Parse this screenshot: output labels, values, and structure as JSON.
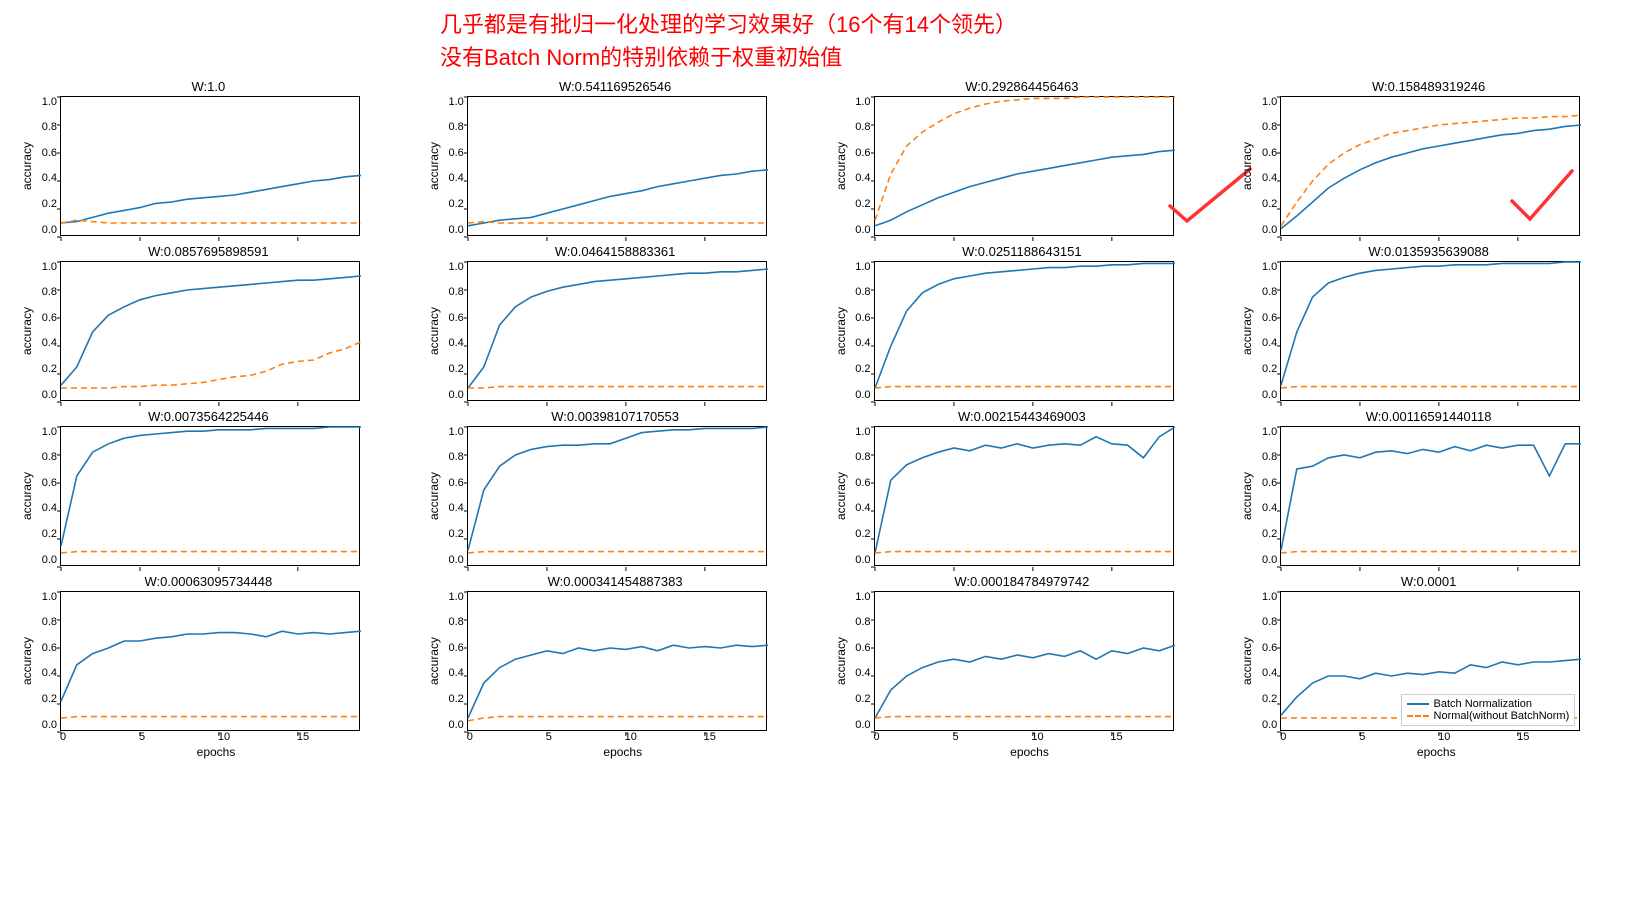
{
  "header": {
    "line1": "几乎都是有批归一化处理的学习效果好（16个有14个领先）",
    "line2": "没有Batch Norm的特别依赖于权重初始值",
    "color": "#ff0000"
  },
  "global": {
    "xlim": [
      0,
      19
    ],
    "ylim": [
      0,
      1.0
    ],
    "xticks": [
      0,
      5,
      10,
      15
    ],
    "yticks": [
      1.0,
      0.8,
      0.6,
      0.4,
      0.2,
      0.0
    ],
    "ylabel": "accuracy",
    "xlabel": "epochs",
    "bn_color": "#1f77b4",
    "normal_color": "#ff7f0e",
    "bn_style": "solid",
    "normal_style": "dashed",
    "line_width": 1.6,
    "checkmark_color": "#ff3333",
    "background_color": "#ffffff",
    "border_color": "#000000",
    "title_fontsize": 13,
    "tick_fontsize": 11,
    "label_fontsize": 12
  },
  "legend": {
    "bn_label": "Batch Normalization",
    "normal_label": "Normal(without BatchNorm)"
  },
  "subplots": [
    {
      "title": "W:1.0",
      "checkmark": false,
      "bn": [
        0.1,
        0.11,
        0.14,
        0.17,
        0.19,
        0.21,
        0.24,
        0.25,
        0.27,
        0.28,
        0.29,
        0.3,
        0.32,
        0.34,
        0.36,
        0.38,
        0.4,
        0.41,
        0.43,
        0.44
      ],
      "normal": [
        0.1,
        0.12,
        0.11,
        0.1,
        0.1,
        0.1,
        0.1,
        0.1,
        0.1,
        0.1,
        0.1,
        0.1,
        0.1,
        0.1,
        0.1,
        0.1,
        0.1,
        0.1,
        0.1,
        0.1
      ]
    },
    {
      "title": "W:0.541169526546",
      "checkmark": false,
      "bn": [
        0.08,
        0.1,
        0.12,
        0.13,
        0.14,
        0.17,
        0.2,
        0.23,
        0.26,
        0.29,
        0.31,
        0.33,
        0.36,
        0.38,
        0.4,
        0.42,
        0.44,
        0.45,
        0.47,
        0.48
      ],
      "normal": [
        0.1,
        0.11,
        0.1,
        0.1,
        0.1,
        0.1,
        0.1,
        0.1,
        0.1,
        0.1,
        0.1,
        0.1,
        0.1,
        0.1,
        0.1,
        0.1,
        0.1,
        0.1,
        0.1,
        0.1
      ]
    },
    {
      "title": "W:0.292864456463",
      "checkmark": true,
      "bn": [
        0.08,
        0.12,
        0.18,
        0.23,
        0.28,
        0.32,
        0.36,
        0.39,
        0.42,
        0.45,
        0.47,
        0.49,
        0.51,
        0.53,
        0.55,
        0.57,
        0.58,
        0.59,
        0.61,
        0.62
      ],
      "normal": [
        0.12,
        0.45,
        0.65,
        0.75,
        0.82,
        0.88,
        0.92,
        0.95,
        0.97,
        0.98,
        0.99,
        0.99,
        0.99,
        1.0,
        1.0,
        1.0,
        1.0,
        1.0,
        1.0,
        1.0
      ]
    },
    {
      "title": "W:0.158489319246",
      "checkmark": true,
      "bn": [
        0.06,
        0.15,
        0.25,
        0.35,
        0.42,
        0.48,
        0.53,
        0.57,
        0.6,
        0.63,
        0.65,
        0.67,
        0.69,
        0.71,
        0.73,
        0.74,
        0.76,
        0.77,
        0.79,
        0.8
      ],
      "normal": [
        0.08,
        0.25,
        0.4,
        0.52,
        0.6,
        0.66,
        0.7,
        0.74,
        0.76,
        0.78,
        0.8,
        0.81,
        0.82,
        0.83,
        0.84,
        0.85,
        0.85,
        0.86,
        0.86,
        0.87
      ]
    },
    {
      "title": "W:0.0857695898591",
      "checkmark": false,
      "bn": [
        0.12,
        0.25,
        0.5,
        0.62,
        0.68,
        0.73,
        0.76,
        0.78,
        0.8,
        0.81,
        0.82,
        0.83,
        0.84,
        0.85,
        0.86,
        0.87,
        0.87,
        0.88,
        0.89,
        0.9
      ],
      "normal": [
        0.1,
        0.1,
        0.1,
        0.1,
        0.11,
        0.11,
        0.12,
        0.12,
        0.13,
        0.14,
        0.16,
        0.18,
        0.19,
        0.22,
        0.27,
        0.29,
        0.3,
        0.35,
        0.38,
        0.43
      ]
    },
    {
      "title": "W:0.0464158883361",
      "checkmark": false,
      "bn": [
        0.1,
        0.25,
        0.55,
        0.68,
        0.75,
        0.79,
        0.82,
        0.84,
        0.86,
        0.87,
        0.88,
        0.89,
        0.9,
        0.91,
        0.92,
        0.92,
        0.93,
        0.93,
        0.94,
        0.95
      ],
      "normal": [
        0.1,
        0.1,
        0.11,
        0.11,
        0.11,
        0.11,
        0.11,
        0.11,
        0.11,
        0.11,
        0.11,
        0.11,
        0.11,
        0.11,
        0.11,
        0.11,
        0.11,
        0.11,
        0.11,
        0.11
      ]
    },
    {
      "title": "W:0.0251188643151",
      "checkmark": false,
      "bn": [
        0.1,
        0.4,
        0.65,
        0.78,
        0.84,
        0.88,
        0.9,
        0.92,
        0.93,
        0.94,
        0.95,
        0.96,
        0.96,
        0.97,
        0.97,
        0.98,
        0.98,
        0.99,
        0.99,
        0.99
      ],
      "normal": [
        0.1,
        0.11,
        0.11,
        0.11,
        0.11,
        0.11,
        0.11,
        0.11,
        0.11,
        0.11,
        0.11,
        0.11,
        0.11,
        0.11,
        0.11,
        0.11,
        0.11,
        0.11,
        0.11,
        0.11
      ]
    },
    {
      "title": "W:0.0135935639088",
      "checkmark": false,
      "bn": [
        0.12,
        0.5,
        0.75,
        0.85,
        0.89,
        0.92,
        0.94,
        0.95,
        0.96,
        0.97,
        0.97,
        0.98,
        0.98,
        0.98,
        0.99,
        0.99,
        0.99,
        0.99,
        1.0,
        1.0
      ],
      "normal": [
        0.1,
        0.11,
        0.11,
        0.11,
        0.11,
        0.11,
        0.11,
        0.11,
        0.11,
        0.11,
        0.11,
        0.11,
        0.11,
        0.11,
        0.11,
        0.11,
        0.11,
        0.11,
        0.11,
        0.11
      ]
    },
    {
      "title": "W:0.0073564225446",
      "checkmark": false,
      "bn": [
        0.15,
        0.65,
        0.82,
        0.88,
        0.92,
        0.94,
        0.95,
        0.96,
        0.97,
        0.97,
        0.98,
        0.98,
        0.98,
        0.99,
        0.99,
        0.99,
        0.99,
        1.0,
        1.0,
        1.0
      ],
      "normal": [
        0.1,
        0.11,
        0.11,
        0.11,
        0.11,
        0.11,
        0.11,
        0.11,
        0.11,
        0.11,
        0.11,
        0.11,
        0.11,
        0.11,
        0.11,
        0.11,
        0.11,
        0.11,
        0.11,
        0.11
      ]
    },
    {
      "title": "W:0.00398107170553",
      "checkmark": false,
      "bn": [
        0.12,
        0.55,
        0.72,
        0.8,
        0.84,
        0.86,
        0.87,
        0.87,
        0.88,
        0.88,
        0.92,
        0.96,
        0.97,
        0.98,
        0.98,
        0.99,
        0.99,
        0.99,
        0.99,
        1.0
      ],
      "normal": [
        0.1,
        0.11,
        0.11,
        0.11,
        0.11,
        0.11,
        0.11,
        0.11,
        0.11,
        0.11,
        0.11,
        0.11,
        0.11,
        0.11,
        0.11,
        0.11,
        0.11,
        0.11,
        0.11,
        0.11
      ]
    },
    {
      "title": "W:0.00215443469003",
      "checkmark": false,
      "bn": [
        0.1,
        0.62,
        0.73,
        0.78,
        0.82,
        0.85,
        0.83,
        0.87,
        0.85,
        0.88,
        0.85,
        0.87,
        0.88,
        0.87,
        0.93,
        0.88,
        0.87,
        0.78,
        0.93,
        1.0
      ],
      "normal": [
        0.1,
        0.11,
        0.11,
        0.11,
        0.11,
        0.11,
        0.11,
        0.11,
        0.11,
        0.11,
        0.11,
        0.11,
        0.11,
        0.11,
        0.11,
        0.11,
        0.11,
        0.11,
        0.11,
        0.11
      ]
    },
    {
      "title": "W:0.00116591440118",
      "checkmark": false,
      "bn": [
        0.12,
        0.7,
        0.72,
        0.78,
        0.8,
        0.78,
        0.82,
        0.83,
        0.81,
        0.84,
        0.82,
        0.86,
        0.83,
        0.87,
        0.85,
        0.87,
        0.87,
        0.65,
        0.88,
        0.88
      ],
      "normal": [
        0.1,
        0.11,
        0.11,
        0.11,
        0.11,
        0.11,
        0.11,
        0.11,
        0.11,
        0.11,
        0.11,
        0.11,
        0.11,
        0.11,
        0.11,
        0.11,
        0.11,
        0.11,
        0.11,
        0.11
      ]
    },
    {
      "title": "W:0.00063095734448",
      "checkmark": false,
      "bn": [
        0.22,
        0.48,
        0.56,
        0.6,
        0.65,
        0.65,
        0.67,
        0.68,
        0.7,
        0.7,
        0.71,
        0.71,
        0.7,
        0.68,
        0.72,
        0.7,
        0.71,
        0.7,
        0.71,
        0.72
      ],
      "normal": [
        0.1,
        0.11,
        0.11,
        0.11,
        0.11,
        0.11,
        0.11,
        0.11,
        0.11,
        0.11,
        0.11,
        0.11,
        0.11,
        0.11,
        0.11,
        0.11,
        0.11,
        0.11,
        0.11,
        0.11
      ]
    },
    {
      "title": "W:0.000341454887383",
      "checkmark": false,
      "bn": [
        0.1,
        0.35,
        0.46,
        0.52,
        0.55,
        0.58,
        0.56,
        0.6,
        0.58,
        0.6,
        0.59,
        0.61,
        0.58,
        0.62,
        0.6,
        0.61,
        0.6,
        0.62,
        0.61,
        0.62
      ],
      "normal": [
        0.08,
        0.1,
        0.11,
        0.11,
        0.11,
        0.11,
        0.11,
        0.11,
        0.11,
        0.11,
        0.11,
        0.11,
        0.11,
        0.11,
        0.11,
        0.11,
        0.11,
        0.11,
        0.11,
        0.11
      ]
    },
    {
      "title": "W:0.000184784979742",
      "checkmark": false,
      "bn": [
        0.1,
        0.3,
        0.4,
        0.46,
        0.5,
        0.52,
        0.5,
        0.54,
        0.52,
        0.55,
        0.53,
        0.56,
        0.54,
        0.58,
        0.52,
        0.58,
        0.56,
        0.6,
        0.58,
        0.62
      ],
      "normal": [
        0.1,
        0.11,
        0.11,
        0.11,
        0.11,
        0.11,
        0.11,
        0.11,
        0.11,
        0.11,
        0.11,
        0.11,
        0.11,
        0.11,
        0.11,
        0.11,
        0.11,
        0.11,
        0.11,
        0.11
      ]
    },
    {
      "title": "W:0.0001",
      "checkmark": false,
      "legend": true,
      "bn": [
        0.12,
        0.25,
        0.35,
        0.4,
        0.4,
        0.38,
        0.42,
        0.4,
        0.42,
        0.41,
        0.43,
        0.42,
        0.48,
        0.46,
        0.5,
        0.48,
        0.5,
        0.5,
        0.51,
        0.52
      ],
      "normal": [
        0.1,
        0.1,
        0.1,
        0.1,
        0.1,
        0.1,
        0.1,
        0.1,
        0.1,
        0.1,
        0.1,
        0.1,
        0.1,
        0.1,
        0.1,
        0.1,
        0.1,
        0.1,
        0.1,
        0.1
      ]
    }
  ]
}
